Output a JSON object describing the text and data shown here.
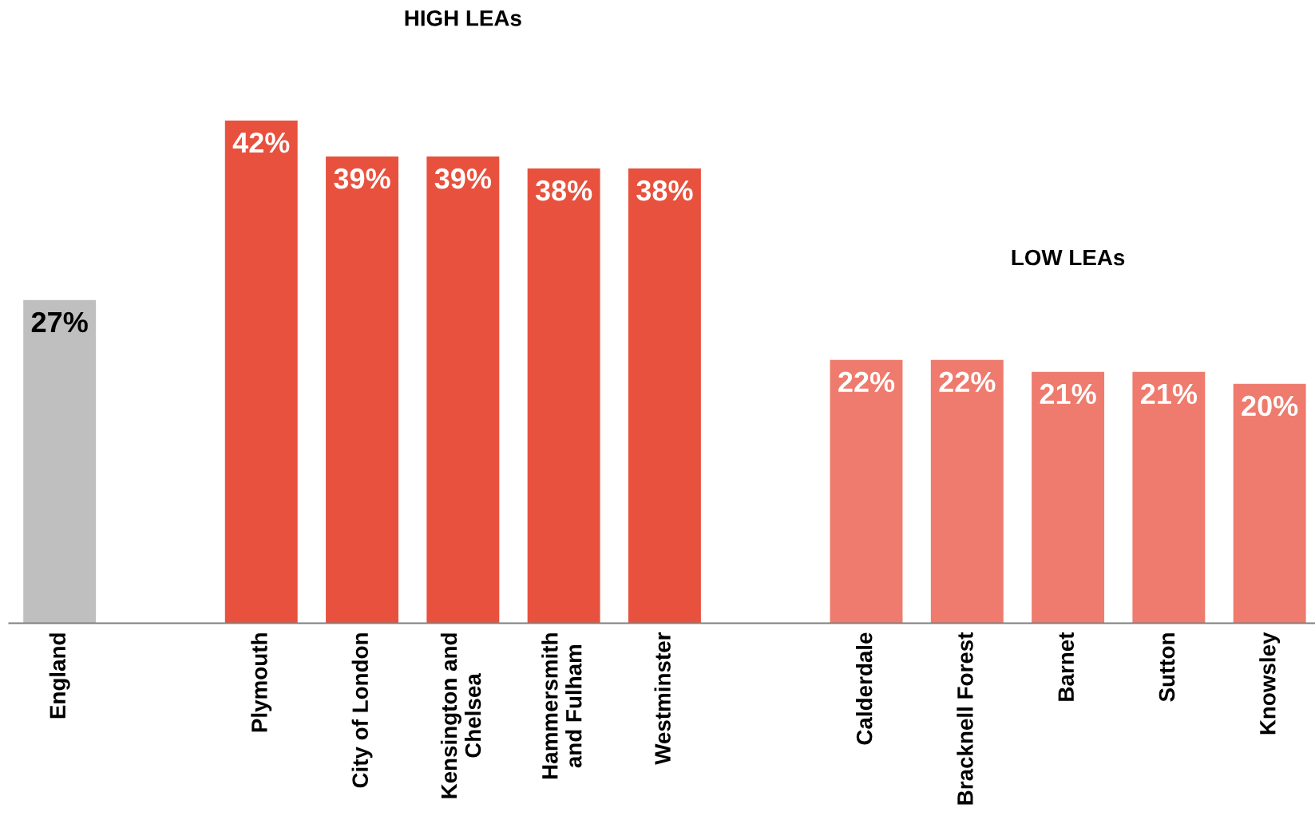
{
  "chart_data": {
    "type": "bar",
    "categories": [
      "England",
      null,
      "Plymouth",
      "City of London",
      "Kensington and\nChelsea",
      "Hammersmith\nand Fulham",
      "Westminster",
      null,
      "Calderdale",
      "Bracknell Forest",
      "Barnet",
      "Sutton",
      "Knowsley"
    ],
    "values": [
      27,
      null,
      42,
      39,
      39,
      38,
      38,
      null,
      22,
      22,
      21,
      21,
      20
    ],
    "colors": [
      "#bfbfbf",
      null,
      "#e8513d",
      "#e8513d",
      "#e8513d",
      "#e8513d",
      "#e8513d",
      null,
      "#ee7b6d",
      "#ee7b6d",
      "#ee7b6d",
      "#ee7b6d",
      "#ee7b6d"
    ],
    "value_labels": [
      "27%",
      null,
      "42%",
      "39%",
      "39%",
      "38%",
      "38%",
      null,
      "22%",
      "22%",
      "21%",
      "21%",
      "20%"
    ],
    "annotations": [
      "HIGH LEAs",
      "LOW LEAs"
    ],
    "grid": false,
    "legend": false
  }
}
